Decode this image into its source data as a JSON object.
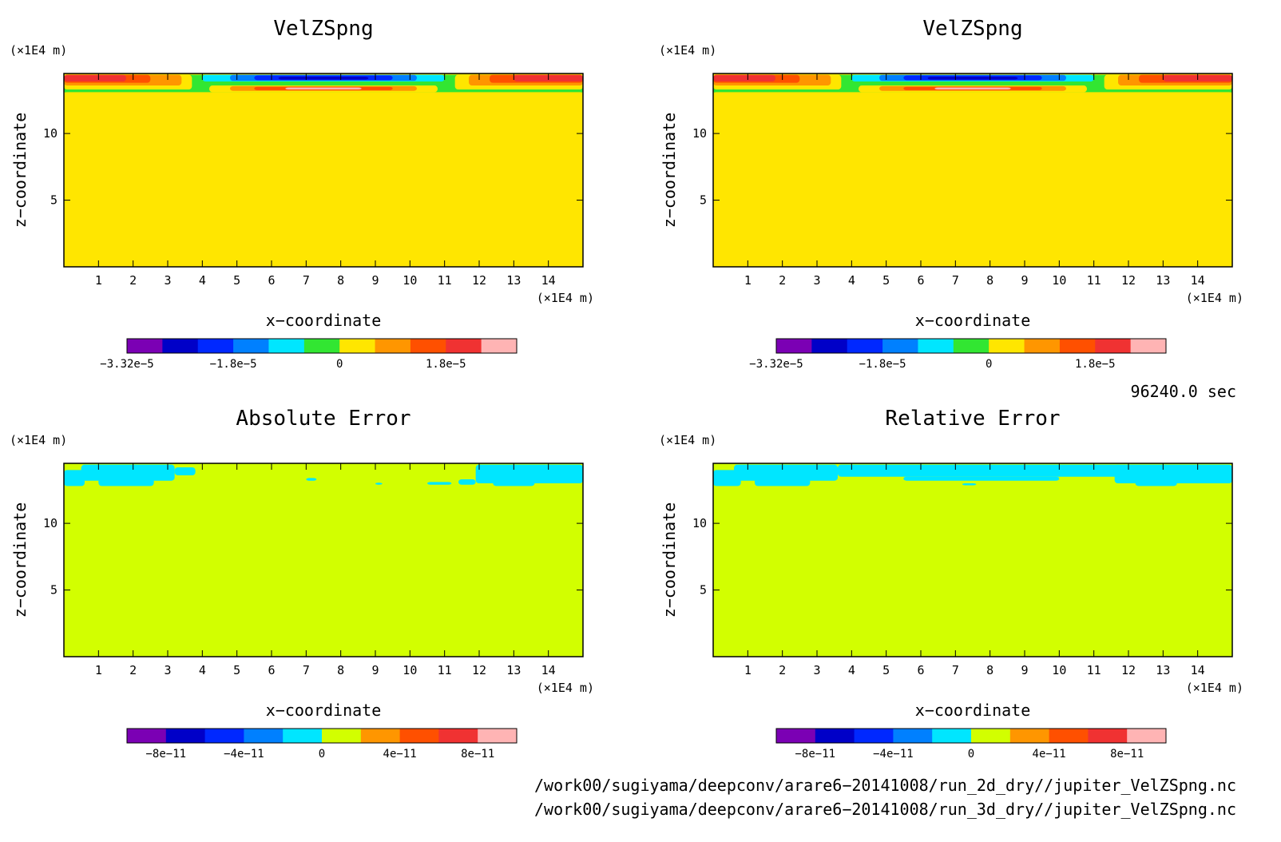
{
  "chart_data": [
    {
      "type": "heatmap",
      "title": "VelZSpng",
      "xlabel": "x−coordinate",
      "ylabel": "z−coordinate",
      "x_unit": "(×1E4 m)",
      "y_unit": "(×1E4 m)",
      "xlim": [
        0,
        15
      ],
      "ylim": [
        0,
        14.5
      ],
      "x_ticks": [
        "1",
        "2",
        "3",
        "4",
        "5",
        "6",
        "7",
        "8",
        "9",
        "10",
        "11",
        "12",
        "13",
        "14"
      ],
      "y_ticks": [
        "5",
        "10"
      ],
      "colorbar": {
        "colors": [
          "#7b00b4",
          "#0000c8",
          "#0028ff",
          "#0080ff",
          "#00e6ff",
          "#32e632",
          "#ffe600",
          "#ff9600",
          "#ff5000",
          "#f03232",
          "#ffb4b4"
        ],
        "labels": [
          "−3.32e−5",
          "−1.8e−5",
          "0",
          "1.8e−5"
        ],
        "label_positions": [
          0,
          3,
          6,
          9
        ]
      },
      "field": {
        "background": "#ffe600",
        "regions": [
          {
            "x": [
              0,
              15
            ],
            "z": [
              13.0,
              14.4
            ],
            "color": "#32e632"
          },
          {
            "x": [
              0,
              3.7
            ],
            "z": [
              13.3,
              14.4
            ],
            "color": "#ffe600"
          },
          {
            "x": [
              11.3,
              15
            ],
            "z": [
              13.3,
              14.4
            ],
            "color": "#ffe600"
          },
          {
            "x": [
              0,
              3.4
            ],
            "z": [
              13.6,
              14.4
            ],
            "color": "#ff9600"
          },
          {
            "x": [
              0,
              2.5
            ],
            "z": [
              13.8,
              14.4
            ],
            "color": "#ff5000"
          },
          {
            "x": [
              0,
              1.8
            ],
            "z": [
              13.9,
              14.4
            ],
            "color": "#f03232"
          },
          {
            "x": [
              11.7,
              15
            ],
            "z": [
              13.6,
              14.4
            ],
            "color": "#ff9600"
          },
          {
            "x": [
              12.3,
              15
            ],
            "z": [
              13.8,
              14.4
            ],
            "color": "#ff5000"
          },
          {
            "x": [
              13.0,
              15
            ],
            "z": [
              13.9,
              14.4
            ],
            "color": "#f03232"
          },
          {
            "x": [
              4.0,
              11.0
            ],
            "z": [
              13.9,
              14.4
            ],
            "color": "#00e6ff"
          },
          {
            "x": [
              4.8,
              10.2
            ],
            "z": [
              13.95,
              14.4
            ],
            "color": "#0080ff"
          },
          {
            "x": [
              5.5,
              9.5
            ],
            "z": [
              14.0,
              14.35
            ],
            "color": "#0028ff"
          },
          {
            "x": [
              6.2,
              8.8
            ],
            "z": [
              14.05,
              14.25
            ],
            "color": "#0000c8"
          },
          {
            "x": [
              4.2,
              10.8
            ],
            "z": [
              13.1,
              13.6
            ],
            "color": "#ffe600"
          },
          {
            "x": [
              4.8,
              10.2
            ],
            "z": [
              13.2,
              13.55
            ],
            "color": "#ff9600"
          },
          {
            "x": [
              5.5,
              9.5
            ],
            "z": [
              13.25,
              13.5
            ],
            "color": "#ff5000"
          },
          {
            "x": [
              6.4,
              8.6
            ],
            "z": [
              13.3,
              13.45
            ],
            "color": "#ffb4b4"
          },
          {
            "x": [
              0,
              15
            ],
            "z": [
              12.9,
              13.1
            ],
            "color": "#ffe600"
          }
        ]
      }
    },
    {
      "type": "heatmap",
      "title": "VelZSpng",
      "xlabel": "x−coordinate",
      "ylabel": "z−coordinate",
      "x_unit": "(×1E4 m)",
      "y_unit": "(×1E4 m)",
      "xlim": [
        0,
        15
      ],
      "ylim": [
        0,
        14.5
      ],
      "x_ticks": [
        "1",
        "2",
        "3",
        "4",
        "5",
        "6",
        "7",
        "8",
        "9",
        "10",
        "11",
        "12",
        "13",
        "14"
      ],
      "y_ticks": [
        "5",
        "10"
      ],
      "colorbar": {
        "colors": [
          "#7b00b4",
          "#0000c8",
          "#0028ff",
          "#0080ff",
          "#00e6ff",
          "#32e632",
          "#ffe600",
          "#ff9600",
          "#ff5000",
          "#f03232",
          "#ffb4b4"
        ],
        "labels": [
          "−3.32e−5",
          "−1.8e−5",
          "0",
          "1.8e−5"
        ],
        "label_positions": [
          0,
          3,
          6,
          9
        ]
      },
      "field": {
        "background": "#ffe600",
        "regions": [
          {
            "x": [
              0,
              15
            ],
            "z": [
              13.0,
              14.4
            ],
            "color": "#32e632"
          },
          {
            "x": [
              0,
              3.7
            ],
            "z": [
              13.3,
              14.4
            ],
            "color": "#ffe600"
          },
          {
            "x": [
              11.3,
              15
            ],
            "z": [
              13.3,
              14.4
            ],
            "color": "#ffe600"
          },
          {
            "x": [
              0,
              3.4
            ],
            "z": [
              13.6,
              14.4
            ],
            "color": "#ff9600"
          },
          {
            "x": [
              0,
              2.5
            ],
            "z": [
              13.8,
              14.4
            ],
            "color": "#ff5000"
          },
          {
            "x": [
              0,
              1.8
            ],
            "z": [
              13.9,
              14.4
            ],
            "color": "#f03232"
          },
          {
            "x": [
              11.7,
              15
            ],
            "z": [
              13.6,
              14.4
            ],
            "color": "#ff9600"
          },
          {
            "x": [
              12.3,
              15
            ],
            "z": [
              13.8,
              14.4
            ],
            "color": "#ff5000"
          },
          {
            "x": [
              13.0,
              15
            ],
            "z": [
              13.9,
              14.4
            ],
            "color": "#f03232"
          },
          {
            "x": [
              4.0,
              11.0
            ],
            "z": [
              13.9,
              14.4
            ],
            "color": "#00e6ff"
          },
          {
            "x": [
              4.8,
              10.2
            ],
            "z": [
              13.95,
              14.4
            ],
            "color": "#0080ff"
          },
          {
            "x": [
              5.5,
              9.5
            ],
            "z": [
              14.0,
              14.35
            ],
            "color": "#0028ff"
          },
          {
            "x": [
              6.2,
              8.8
            ],
            "z": [
              14.05,
              14.25
            ],
            "color": "#0000c8"
          },
          {
            "x": [
              4.2,
              10.8
            ],
            "z": [
              13.1,
              13.6
            ],
            "color": "#ffe600"
          },
          {
            "x": [
              4.8,
              10.2
            ],
            "z": [
              13.2,
              13.55
            ],
            "color": "#ff9600"
          },
          {
            "x": [
              5.5,
              9.5
            ],
            "z": [
              13.25,
              13.5
            ],
            "color": "#ff5000"
          },
          {
            "x": [
              6.4,
              8.6
            ],
            "z": [
              13.3,
              13.45
            ],
            "color": "#ffb4b4"
          },
          {
            "x": [
              0,
              15
            ],
            "z": [
              12.9,
              13.1
            ],
            "color": "#ffe600"
          }
        ]
      }
    },
    {
      "type": "heatmap",
      "title": "Absolute Error",
      "xlabel": "x−coordinate",
      "ylabel": "z−coordinate",
      "x_unit": "(×1E4 m)",
      "y_unit": "(×1E4 m)",
      "xlim": [
        0,
        15
      ],
      "ylim": [
        0,
        14.5
      ],
      "x_ticks": [
        "1",
        "2",
        "3",
        "4",
        "5",
        "6",
        "7",
        "8",
        "9",
        "10",
        "11",
        "12",
        "13",
        "14"
      ],
      "y_ticks": [
        "5",
        "10"
      ],
      "colorbar": {
        "colors": [
          "#7b00b4",
          "#0000c8",
          "#0028ff",
          "#0080ff",
          "#00e6ff",
          "#d2ff00",
          "#ff9600",
          "#ff5000",
          "#f03232",
          "#ffb4b4"
        ],
        "labels": [
          "−8e−11",
          "−4e−11",
          "0",
          "4e−11",
          "8e−11"
        ],
        "label_positions": [
          1,
          3,
          5,
          7,
          9
        ]
      },
      "field": {
        "background": "#d2ff00",
        "regions": [
          {
            "x": [
              0,
              0.6
            ],
            "z": [
              12.8,
              14.0
            ],
            "color": "#00e6ff"
          },
          {
            "x": [
              0.5,
              3.2
            ],
            "z": [
              13.2,
              14.4
            ],
            "color": "#00e6ff"
          },
          {
            "x": [
              1.0,
              2.6
            ],
            "z": [
              12.8,
              13.4
            ],
            "color": "#00e6ff"
          },
          {
            "x": [
              3.2,
              3.8
            ],
            "z": [
              13.6,
              14.2
            ],
            "color": "#00e6ff"
          },
          {
            "x": [
              7.0,
              7.3
            ],
            "z": [
              13.2,
              13.4
            ],
            "color": "#00e6ff"
          },
          {
            "x": [
              9.0,
              9.2
            ],
            "z": [
              12.9,
              13.05
            ],
            "color": "#00e6ff"
          },
          {
            "x": [
              10.5,
              11.2
            ],
            "z": [
              12.9,
              13.1
            ],
            "color": "#00e6ff"
          },
          {
            "x": [
              11.4,
              11.9
            ],
            "z": [
              12.9,
              13.3
            ],
            "color": "#00e6ff"
          },
          {
            "x": [
              11.9,
              15
            ],
            "z": [
              13.0,
              14.4
            ],
            "color": "#00e6ff"
          },
          {
            "x": [
              12.4,
              13.6
            ],
            "z": [
              12.8,
              13.2
            ],
            "color": "#00e6ff"
          }
        ]
      }
    },
    {
      "type": "heatmap",
      "title": "Relative Error",
      "xlabel": "x−coordinate",
      "ylabel": "z−coordinate",
      "x_unit": "(×1E4 m)",
      "y_unit": "(×1E4 m)",
      "xlim": [
        0,
        15
      ],
      "ylim": [
        0,
        14.5
      ],
      "x_ticks": [
        "1",
        "2",
        "3",
        "4",
        "5",
        "6",
        "7",
        "8",
        "9",
        "10",
        "11",
        "12",
        "13",
        "14"
      ],
      "y_ticks": [
        "5",
        "10"
      ],
      "colorbar": {
        "colors": [
          "#7b00b4",
          "#0000c8",
          "#0028ff",
          "#0080ff",
          "#00e6ff",
          "#d2ff00",
          "#ff9600",
          "#ff5000",
          "#f03232",
          "#ffb4b4"
        ],
        "labels": [
          "−8e−11",
          "−4e−11",
          "0",
          "4e−11",
          "8e−11"
        ],
        "label_positions": [
          1,
          3,
          5,
          7,
          9
        ]
      },
      "field": {
        "background": "#d2ff00",
        "regions": [
          {
            "x": [
              0,
              0.8
            ],
            "z": [
              12.8,
              14.0
            ],
            "color": "#00e6ff"
          },
          {
            "x": [
              0.6,
              3.6
            ],
            "z": [
              13.2,
              14.4
            ],
            "color": "#00e6ff"
          },
          {
            "x": [
              1.2,
              2.8
            ],
            "z": [
              12.8,
              13.4
            ],
            "color": "#00e6ff"
          },
          {
            "x": [
              3.6,
              11.8
            ],
            "z": [
              13.5,
              14.4
            ],
            "color": "#00e6ff"
          },
          {
            "x": [
              5.5,
              10.0
            ],
            "z": [
              13.2,
              13.5
            ],
            "color": "#00e6ff"
          },
          {
            "x": [
              11.6,
              15
            ],
            "z": [
              13.0,
              14.4
            ],
            "color": "#00e6ff"
          },
          {
            "x": [
              12.2,
              13.4
            ],
            "z": [
              12.8,
              13.2
            ],
            "color": "#00e6ff"
          },
          {
            "x": [
              7.2,
              7.6
            ],
            "z": [
              12.85,
              13.0
            ],
            "color": "#00e6ff"
          }
        ]
      }
    }
  ],
  "time_label": "96240.0 sec",
  "footer": {
    "line1": "/work00/sugiyama/deepconv/arare6−20141008/run_2d_dry//jupiter_VelZSpng.nc",
    "line2": "/work00/sugiyama/deepconv/arare6−20141008/run_3d_dry//jupiter_VelZSpng.nc"
  }
}
